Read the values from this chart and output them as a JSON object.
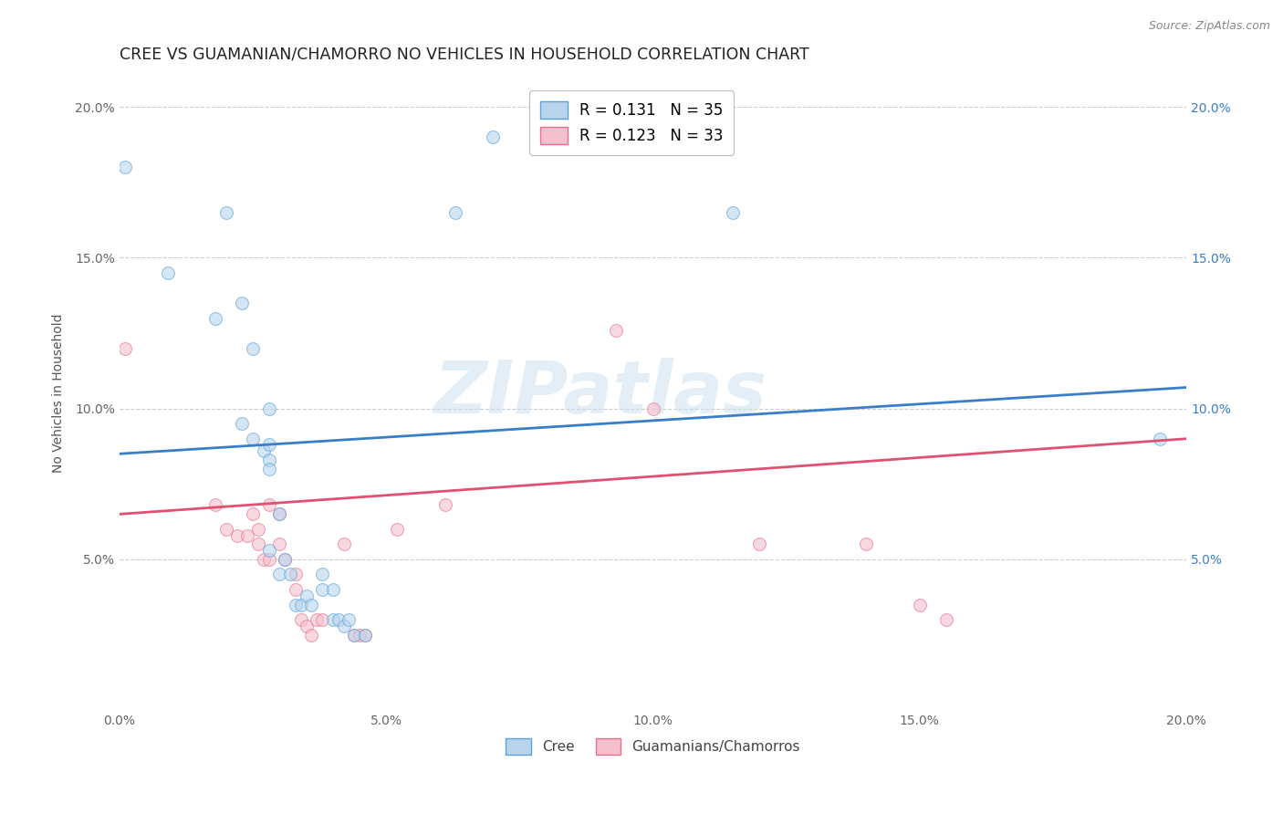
{
  "title": "CREE VS GUAMANIAN/CHAMORRO NO VEHICLES IN HOUSEHOLD CORRELATION CHART",
  "source": "Source: ZipAtlas.com",
  "ylabel": "No Vehicles in Household",
  "watermark": "ZIPatlas",
  "xlim": [
    0.0,
    0.2
  ],
  "ylim": [
    0.0,
    0.21
  ],
  "xtick_labels": [
    "0.0%",
    "",
    "",
    "",
    "",
    "5.0%",
    "",
    "",
    "",
    "",
    "10.0%",
    "",
    "",
    "",
    "",
    "15.0%",
    "",
    "",
    "",
    "",
    "20.0%"
  ],
  "xtick_vals": [
    0.0,
    0.01,
    0.02,
    0.03,
    0.04,
    0.05,
    0.06,
    0.07,
    0.08,
    0.09,
    0.1,
    0.11,
    0.12,
    0.13,
    0.14,
    0.15,
    0.16,
    0.17,
    0.18,
    0.19,
    0.2
  ],
  "ytick_labels": [
    "5.0%",
    "10.0%",
    "15.0%",
    "20.0%"
  ],
  "ytick_vals": [
    0.05,
    0.1,
    0.15,
    0.2
  ],
  "legend_line1": "R = 0.131   N = 35",
  "legend_line2": "R = 0.123   N = 33",
  "cree_fill_color": "#b8d4ed",
  "cree_edge_color": "#5ba3d9",
  "guam_fill_color": "#f5c0ce",
  "guam_edge_color": "#e8708a",
  "cree_line_color": "#3a7ec8",
  "guam_line_color": "#e05070",
  "cree_line_start_y": 0.085,
  "cree_line_end_y": 0.107,
  "guam_line_start_y": 0.065,
  "guam_line_end_y": 0.09,
  "cree_scatter": [
    [
      0.001,
      0.18
    ],
    [
      0.009,
      0.145
    ],
    [
      0.018,
      0.13
    ],
    [
      0.02,
      0.165
    ],
    [
      0.023,
      0.135
    ],
    [
      0.025,
      0.12
    ],
    [
      0.023,
      0.095
    ],
    [
      0.028,
      0.1
    ],
    [
      0.025,
      0.09
    ],
    [
      0.027,
      0.086
    ],
    [
      0.028,
      0.088
    ],
    [
      0.028,
      0.083
    ],
    [
      0.028,
      0.08
    ],
    [
      0.028,
      0.053
    ],
    [
      0.03,
      0.065
    ],
    [
      0.03,
      0.045
    ],
    [
      0.031,
      0.05
    ],
    [
      0.032,
      0.045
    ],
    [
      0.033,
      0.035
    ],
    [
      0.034,
      0.035
    ],
    [
      0.035,
      0.038
    ],
    [
      0.036,
      0.035
    ],
    [
      0.038,
      0.045
    ],
    [
      0.038,
      0.04
    ],
    [
      0.04,
      0.04
    ],
    [
      0.04,
      0.03
    ],
    [
      0.041,
      0.03
    ],
    [
      0.042,
      0.028
    ],
    [
      0.043,
      0.03
    ],
    [
      0.044,
      0.025
    ],
    [
      0.046,
      0.025
    ],
    [
      0.063,
      0.165
    ],
    [
      0.07,
      0.19
    ],
    [
      0.115,
      0.165
    ],
    [
      0.195,
      0.09
    ]
  ],
  "guam_scatter": [
    [
      0.001,
      0.12
    ],
    [
      0.018,
      0.068
    ],
    [
      0.02,
      0.06
    ],
    [
      0.022,
      0.058
    ],
    [
      0.024,
      0.058
    ],
    [
      0.025,
      0.065
    ],
    [
      0.026,
      0.06
    ],
    [
      0.026,
      0.055
    ],
    [
      0.027,
      0.05
    ],
    [
      0.028,
      0.05
    ],
    [
      0.028,
      0.068
    ],
    [
      0.03,
      0.065
    ],
    [
      0.03,
      0.055
    ],
    [
      0.031,
      0.05
    ],
    [
      0.033,
      0.045
    ],
    [
      0.033,
      0.04
    ],
    [
      0.034,
      0.03
    ],
    [
      0.035,
      0.028
    ],
    [
      0.036,
      0.025
    ],
    [
      0.037,
      0.03
    ],
    [
      0.038,
      0.03
    ],
    [
      0.042,
      0.055
    ],
    [
      0.044,
      0.025
    ],
    [
      0.045,
      0.025
    ],
    [
      0.046,
      0.025
    ],
    [
      0.052,
      0.06
    ],
    [
      0.061,
      0.068
    ],
    [
      0.093,
      0.126
    ],
    [
      0.1,
      0.1
    ],
    [
      0.12,
      0.055
    ],
    [
      0.14,
      0.055
    ],
    [
      0.15,
      0.035
    ],
    [
      0.155,
      0.03
    ]
  ],
  "background_color": "#ffffff",
  "grid_color": "#cccccc",
  "title_fontsize": 12.5,
  "tick_fontsize": 10,
  "marker_size": 100,
  "marker_alpha": 0.6
}
